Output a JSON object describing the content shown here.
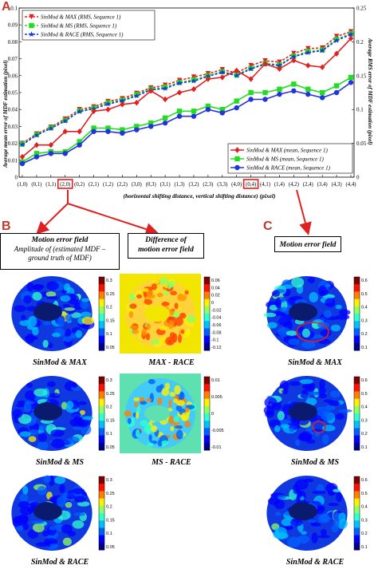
{
  "panels": {
    "a": "A",
    "b": "B",
    "c": "C"
  },
  "chart_data": {
    "type": "line",
    "xlabel": "(horizontal shifting distance, vertical shifting distance) (pixel)",
    "ylabel_left": "Average mean error of MDF estimation (pixel)",
    "ylabel_right": "Average RMS error of MDF estimation (pixel)",
    "categories": [
      "(1,0)",
      "(0,1)",
      "(1,1)",
      "(2,0)",
      "(0,2)",
      "(2,1)",
      "(1,2)",
      "(2,2)",
      "(3,0)",
      "(0,3)",
      "(3,1)",
      "(1,3)",
      "(3,2)",
      "(2,3)",
      "(3,3)",
      "(4,0)",
      "(0,4)",
      "(4,1)",
      "(1,4)",
      "(4,2)",
      "(2,4)",
      "(3,4)",
      "(4,3)",
      "(4,4)"
    ],
    "highlighted_categories": [
      "(2,0)",
      "(0,4)"
    ],
    "y_left": {
      "lim": [
        0,
        0.1
      ],
      "ticks": [
        "0",
        "0.01",
        "0.02",
        "0.03",
        "0.04",
        "0.05",
        "0.06",
        "0.07",
        "0.08",
        "0.09",
        "0.1"
      ]
    },
    "y_right": {
      "lim": [
        0,
        0.25
      ],
      "ticks": [
        "0",
        "0.05",
        "0.1",
        "0.15",
        "0.2",
        "0.25"
      ]
    },
    "series": [
      {
        "name": "SinMod & MAX (RMS, Sequence 1)",
        "axis": "right",
        "color": "#e02020",
        "dash": true,
        "marker": "triangle",
        "values": [
          0.05,
          0.064,
          0.074,
          0.086,
          0.1,
          0.104,
          0.112,
          0.116,
          0.124,
          0.132,
          0.136,
          0.143,
          0.148,
          0.153,
          0.159,
          0.154,
          0.165,
          0.172,
          0.17,
          0.183,
          0.19,
          0.191,
          0.208,
          0.215
        ]
      },
      {
        "name": "SinMod & MS (RMS, Sequence 1)",
        "axis": "right",
        "color": "#22dd22",
        "dash": true,
        "marker": "square",
        "values": [
          0.049,
          0.063,
          0.073,
          0.084,
          0.098,
          0.102,
          0.11,
          0.114,
          0.122,
          0.13,
          0.133,
          0.14,
          0.144,
          0.15,
          0.156,
          0.151,
          0.161,
          0.168,
          0.166,
          0.179,
          0.186,
          0.188,
          0.204,
          0.212
        ]
      },
      {
        "name": "SinMod & RACE (RMS, Sequence 1)",
        "axis": "right",
        "color": "#2233dd",
        "dash": true,
        "marker": "star",
        "values": [
          0.048,
          0.062,
          0.072,
          0.083,
          0.097,
          0.101,
          0.108,
          0.113,
          0.12,
          0.129,
          0.131,
          0.139,
          0.142,
          0.149,
          0.155,
          0.15,
          0.16,
          0.167,
          0.165,
          0.178,
          0.184,
          0.187,
          0.202,
          0.211
        ]
      },
      {
        "name": "SinMod & MAX (mean, Sequence 1)",
        "axis": "left",
        "color": "#e02020",
        "dash": false,
        "marker": "diamond",
        "values": [
          0.012,
          0.019,
          0.019,
          0.027,
          0.027,
          0.039,
          0.04,
          0.043,
          0.044,
          0.051,
          0.046,
          0.05,
          0.052,
          0.058,
          0.059,
          0.063,
          0.058,
          0.067,
          0.064,
          0.069,
          0.066,
          0.065,
          0.073,
          0.082
        ]
      },
      {
        "name": "SinMod & MS (mean, Sequence 1)",
        "axis": "left",
        "color": "#22dd22",
        "dash": false,
        "marker": "square",
        "values": [
          0.009,
          0.014,
          0.015,
          0.015,
          0.021,
          0.029,
          0.029,
          0.028,
          0.03,
          0.032,
          0.035,
          0.039,
          0.039,
          0.042,
          0.04,
          0.045,
          0.05,
          0.05,
          0.052,
          0.055,
          0.052,
          0.05,
          0.054,
          0.059
        ]
      },
      {
        "name": "SinMod & RACE (mean, Sequence 1)",
        "axis": "left",
        "color": "#2233dd",
        "dash": false,
        "marker": "circle",
        "values": [
          0.008,
          0.012,
          0.014,
          0.014,
          0.019,
          0.027,
          0.027,
          0.026,
          0.028,
          0.03,
          0.032,
          0.036,
          0.036,
          0.04,
          0.038,
          0.041,
          0.046,
          0.046,
          0.049,
          0.051,
          0.049,
          0.047,
          0.05,
          0.056
        ]
      }
    ]
  },
  "panel_b": {
    "col1_title": "Motion error field",
    "col1_sub1": "Amplitude of (estimated MDF –",
    "col1_sub2": "ground truth of MDF)",
    "col2_title1": "Difference of",
    "col2_title2": "motion error field",
    "rows": [
      {
        "left_caption": "SinMod & MAX",
        "right_caption": "MAX - RACE"
      },
      {
        "left_caption": "SinMod & MS",
        "right_caption": "MS - RACE"
      },
      {
        "left_caption": "SinMod & RACE",
        "right_caption": ""
      }
    ],
    "left_colorbar_ticks": [
      "0.3",
      "0.25",
      "0.2",
      "0.15",
      "0.1",
      "0.05"
    ],
    "diff1_colorbar_ticks": [
      "0.06",
      "0.04",
      "0.02",
      "0",
      "-0.02",
      "-0.04",
      "-0.06",
      "-0.08",
      "-0.1",
      "-0.12"
    ],
    "diff2_colorbar_ticks": [
      "0.01",
      "0.005",
      "0",
      "-0.005",
      "-0.01"
    ]
  },
  "panel_c": {
    "title": "Motion error field",
    "rows": [
      {
        "caption": "SinMod & MAX"
      },
      {
        "caption": "SinMod & MS"
      },
      {
        "caption": "SinMod & RACE"
      }
    ],
    "colorbar_ticks": [
      "0.6",
      "0.5",
      "0.4",
      "0.3",
      "0.2",
      "0.1"
    ]
  }
}
